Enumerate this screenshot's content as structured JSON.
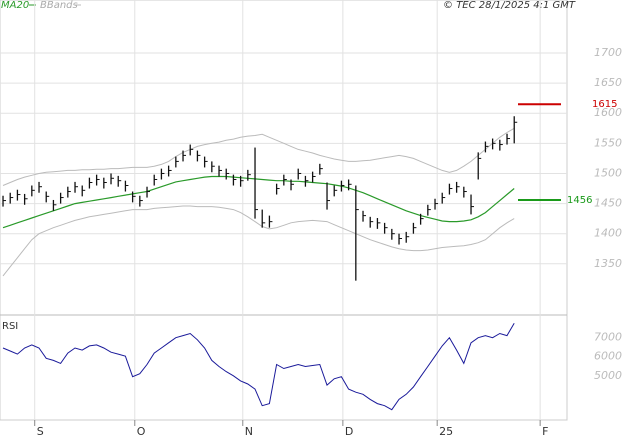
{
  "chart_data": [
    {
      "type": "ohlc",
      "source": "© TEC 28/1/2025 4:1 GMT",
      "xlim": [
        -0.42,
        78.33
      ],
      "xticks": [
        {
          "value": 4.4,
          "label": "S"
        },
        {
          "value": 18.3,
          "label": "O"
        },
        {
          "value": 33.3,
          "label": "N"
        },
        {
          "value": 47.2,
          "label": "D"
        },
        {
          "value": 60.3,
          "label": "25"
        },
        {
          "value": 74.6,
          "label": "F"
        }
      ],
      "ylim": [
        1265,
        1788
      ],
      "yticks": [
        1350,
        1400,
        1450,
        1500,
        1550,
        1600,
        1650,
        1700
      ],
      "grid": true,
      "color": "#111111",
      "close": [
        1455,
        1460,
        1465,
        1458,
        1472,
        1478,
        1462,
        1448,
        1460,
        1470,
        1478,
        1472,
        1485,
        1490,
        1485,
        1492,
        1488,
        1480,
        1462,
        1455,
        1470,
        1490,
        1500,
        1505,
        1520,
        1530,
        1540,
        1530,
        1520,
        1512,
        1505,
        1500,
        1490,
        1488,
        1498,
        1440,
        1418,
        1420,
        1475,
        1490,
        1482,
        1500,
        1488,
        1495,
        1508,
        1455,
        1472,
        1480,
        1482,
        1440,
        1430,
        1420,
        1418,
        1410,
        1400,
        1392,
        1395,
        1410,
        1425,
        1440,
        1450,
        1460,
        1475,
        1478,
        1470,
        1445,
        1525,
        1545,
        1550,
        1548,
        1558,
        1585
      ],
      "high": [
        1463,
        1468,
        1473,
        1466,
        1480,
        1486,
        1470,
        1456,
        1468,
        1478,
        1486,
        1480,
        1493,
        1498,
        1493,
        1500,
        1496,
        1488,
        1470,
        1463,
        1478,
        1498,
        1508,
        1513,
        1528,
        1538,
        1548,
        1538,
        1528,
        1520,
        1513,
        1508,
        1498,
        1496,
        1506,
        1543,
        1440,
        1430,
        1483,
        1498,
        1490,
        1508,
        1496,
        1503,
        1516,
        1485,
        1480,
        1488,
        1490,
        1480,
        1438,
        1428,
        1426,
        1418,
        1408,
        1400,
        1403,
        1418,
        1433,
        1448,
        1458,
        1468,
        1483,
        1486,
        1478,
        1465,
        1535,
        1553,
        1558,
        1556,
        1566,
        1595
      ],
      "low": [
        1445,
        1450,
        1455,
        1448,
        1462,
        1468,
        1452,
        1438,
        1450,
        1460,
        1468,
        1462,
        1475,
        1480,
        1475,
        1482,
        1478,
        1470,
        1452,
        1445,
        1460,
        1480,
        1490,
        1495,
        1510,
        1520,
        1530,
        1520,
        1510,
        1502,
        1495,
        1490,
        1480,
        1478,
        1488,
        1425,
        1410,
        1410,
        1465,
        1480,
        1472,
        1490,
        1478,
        1485,
        1498,
        1440,
        1462,
        1470,
        1472,
        1322,
        1420,
        1410,
        1408,
        1400,
        1390,
        1382,
        1385,
        1400,
        1415,
        1430,
        1440,
        1450,
        1465,
        1468,
        1460,
        1432,
        1490,
        1535,
        1540,
        1538,
        1548,
        1550
      ],
      "ma": {
        "name": "MA20",
        "color": "#2a9a2a",
        "values": [
          1410,
          1414,
          1418,
          1422,
          1426,
          1430,
          1434,
          1438,
          1442,
          1446,
          1450,
          1452,
          1454,
          1456,
          1458,
          1460,
          1462,
          1464,
          1466,
          1468,
          1470,
          1474,
          1478,
          1482,
          1486,
          1488,
          1490,
          1492,
          1494,
          1495,
          1495,
          1495,
          1494,
          1493,
          1492,
          1491,
          1490,
          1489,
          1488,
          1488,
          1487,
          1487,
          1486,
          1485,
          1484,
          1483,
          1481,
          1479,
          1476,
          1472,
          1468,
          1463,
          1458,
          1453,
          1448,
          1443,
          1438,
          1434,
          1430,
          1427,
          1424,
          1421,
          1420,
          1420,
          1421,
          1423,
          1428,
          1435,
          1445,
          1455,
          1465,
          1475
        ]
      },
      "bands": {
        "name": "BBands",
        "color": "#bbbbbb",
        "upper": [
          1480,
          1485,
          1490,
          1494,
          1497,
          1500,
          1502,
          1503,
          1504,
          1505,
          1505,
          1506,
          1506,
          1507,
          1507,
          1508,
          1508,
          1509,
          1510,
          1510,
          1510,
          1512,
          1515,
          1520,
          1528,
          1535,
          1540,
          1545,
          1548,
          1550,
          1552,
          1555,
          1557,
          1560,
          1562,
          1563,
          1565,
          1560,
          1555,
          1550,
          1545,
          1540,
          1537,
          1534,
          1530,
          1527,
          1524,
          1522,
          1520,
          1520,
          1521,
          1522,
          1524,
          1526,
          1528,
          1530,
          1528,
          1525,
          1520,
          1515,
          1510,
          1505,
          1502,
          1505,
          1512,
          1520,
          1530,
          1540,
          1550,
          1560,
          1568,
          1575
        ],
        "lower": [
          1330,
          1345,
          1360,
          1375,
          1390,
          1400,
          1405,
          1410,
          1414,
          1418,
          1422,
          1425,
          1428,
          1430,
          1432,
          1434,
          1436,
          1438,
          1440,
          1440,
          1440,
          1442,
          1443,
          1444,
          1445,
          1446,
          1446,
          1445,
          1445,
          1445,
          1444,
          1442,
          1440,
          1435,
          1428,
          1420,
          1412,
          1408,
          1410,
          1414,
          1418,
          1420,
          1421,
          1422,
          1421,
          1420,
          1415,
          1410,
          1405,
          1400,
          1395,
          1390,
          1386,
          1382,
          1378,
          1375,
          1373,
          1372,
          1372,
          1373,
          1375,
          1377,
          1378,
          1379,
          1380,
          1382,
          1385,
          1390,
          1400,
          1410,
          1418,
          1425
        ]
      },
      "levels": [
        {
          "value": 1615,
          "color": "#cc0000"
        },
        {
          "value": 1456,
          "color": "#1a9a1a"
        }
      ]
    },
    {
      "type": "line",
      "title": "RSI",
      "color": "#1a1a9a",
      "ylim": [
        2680,
        8190
      ],
      "yticks": [
        5000,
        6000,
        7000
      ],
      "values": [
        6460,
        6300,
        6140,
        6460,
        6620,
        6460,
        5920,
        5810,
        5650,
        6190,
        6460,
        6350,
        6570,
        6620,
        6460,
        6240,
        6140,
        6030,
        4950,
        5110,
        5590,
        6190,
        6460,
        6730,
        7000,
        7110,
        7220,
        6890,
        6460,
        5810,
        5490,
        5220,
        5000,
        4730,
        4570,
        4300,
        3430,
        3540,
        5590,
        5380,
        5490,
        5590,
        5490,
        5540,
        5590,
        4510,
        4840,
        4950,
        4300,
        4140,
        4030,
        3760,
        3540,
        3430,
        3220,
        3760,
        4030,
        4410,
        4950,
        5490,
        6030,
        6570,
        7000,
        6350,
        5650,
        6730,
        7000,
        7110,
        7000,
        7220,
        7110,
        7760
      ]
    }
  ]
}
